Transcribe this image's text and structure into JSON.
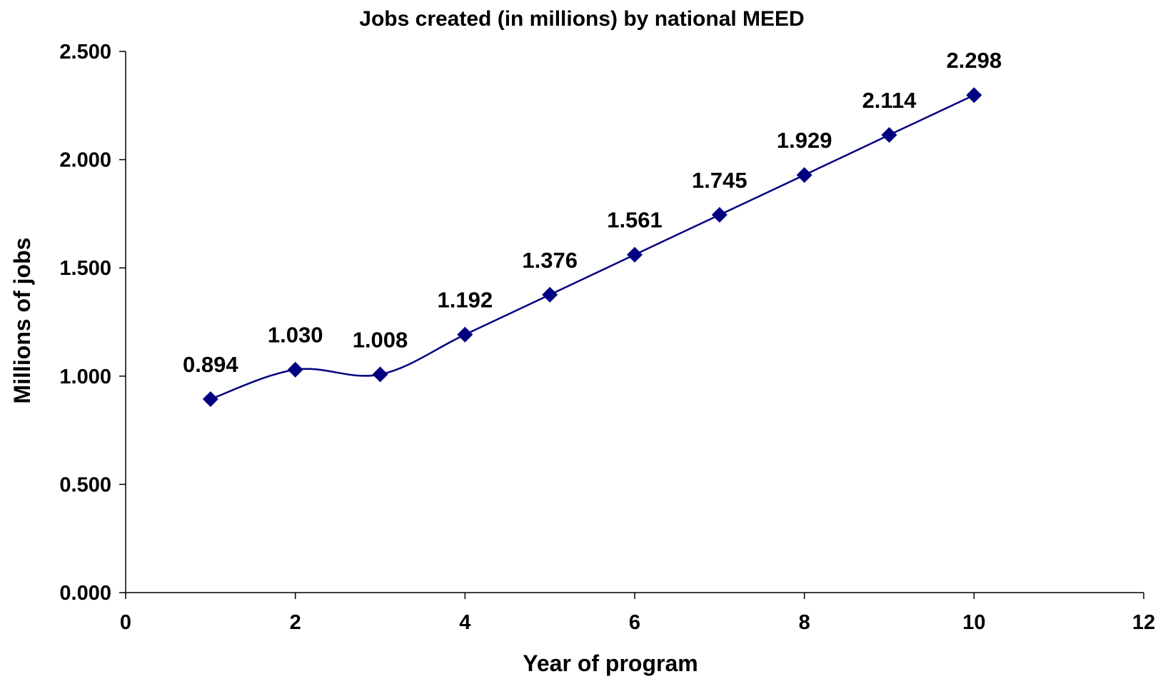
{
  "chart_data": {
    "type": "line",
    "title": "Jobs created (in millions) by  national MEED",
    "xlabel": "Year of program",
    "ylabel": "Millions of jobs",
    "xlim": [
      0,
      12
    ],
    "ylim": [
      0,
      2.5
    ],
    "x_ticks": [
      0,
      2,
      4,
      6,
      8,
      10,
      12
    ],
    "y_ticks": [
      0,
      0.5,
      1,
      1.5,
      2,
      2.5
    ],
    "x_tick_labels": [
      "0",
      "2",
      "4",
      "6",
      "8",
      "10",
      "12"
    ],
    "y_tick_labels": [
      "0.000",
      "0.500",
      "1.000",
      "1.500",
      "2.000",
      "2.500"
    ],
    "grid": false,
    "legend": "none",
    "series": [
      {
        "color": "#000080",
        "marker": "diamond",
        "smooth": true,
        "x": [
          1,
          2,
          3,
          4,
          5,
          6,
          7,
          8,
          9,
          10
        ],
        "y": [
          0.894,
          1.03,
          1.008,
          1.192,
          1.376,
          1.561,
          1.745,
          1.929,
          2.114,
          2.298
        ],
        "data_labels": [
          "0.894",
          "1.030",
          "1.008",
          "1.192",
          "1.376",
          "1.561",
          "1.745",
          "1.929",
          "2.114",
          "2.298"
        ]
      }
    ]
  }
}
